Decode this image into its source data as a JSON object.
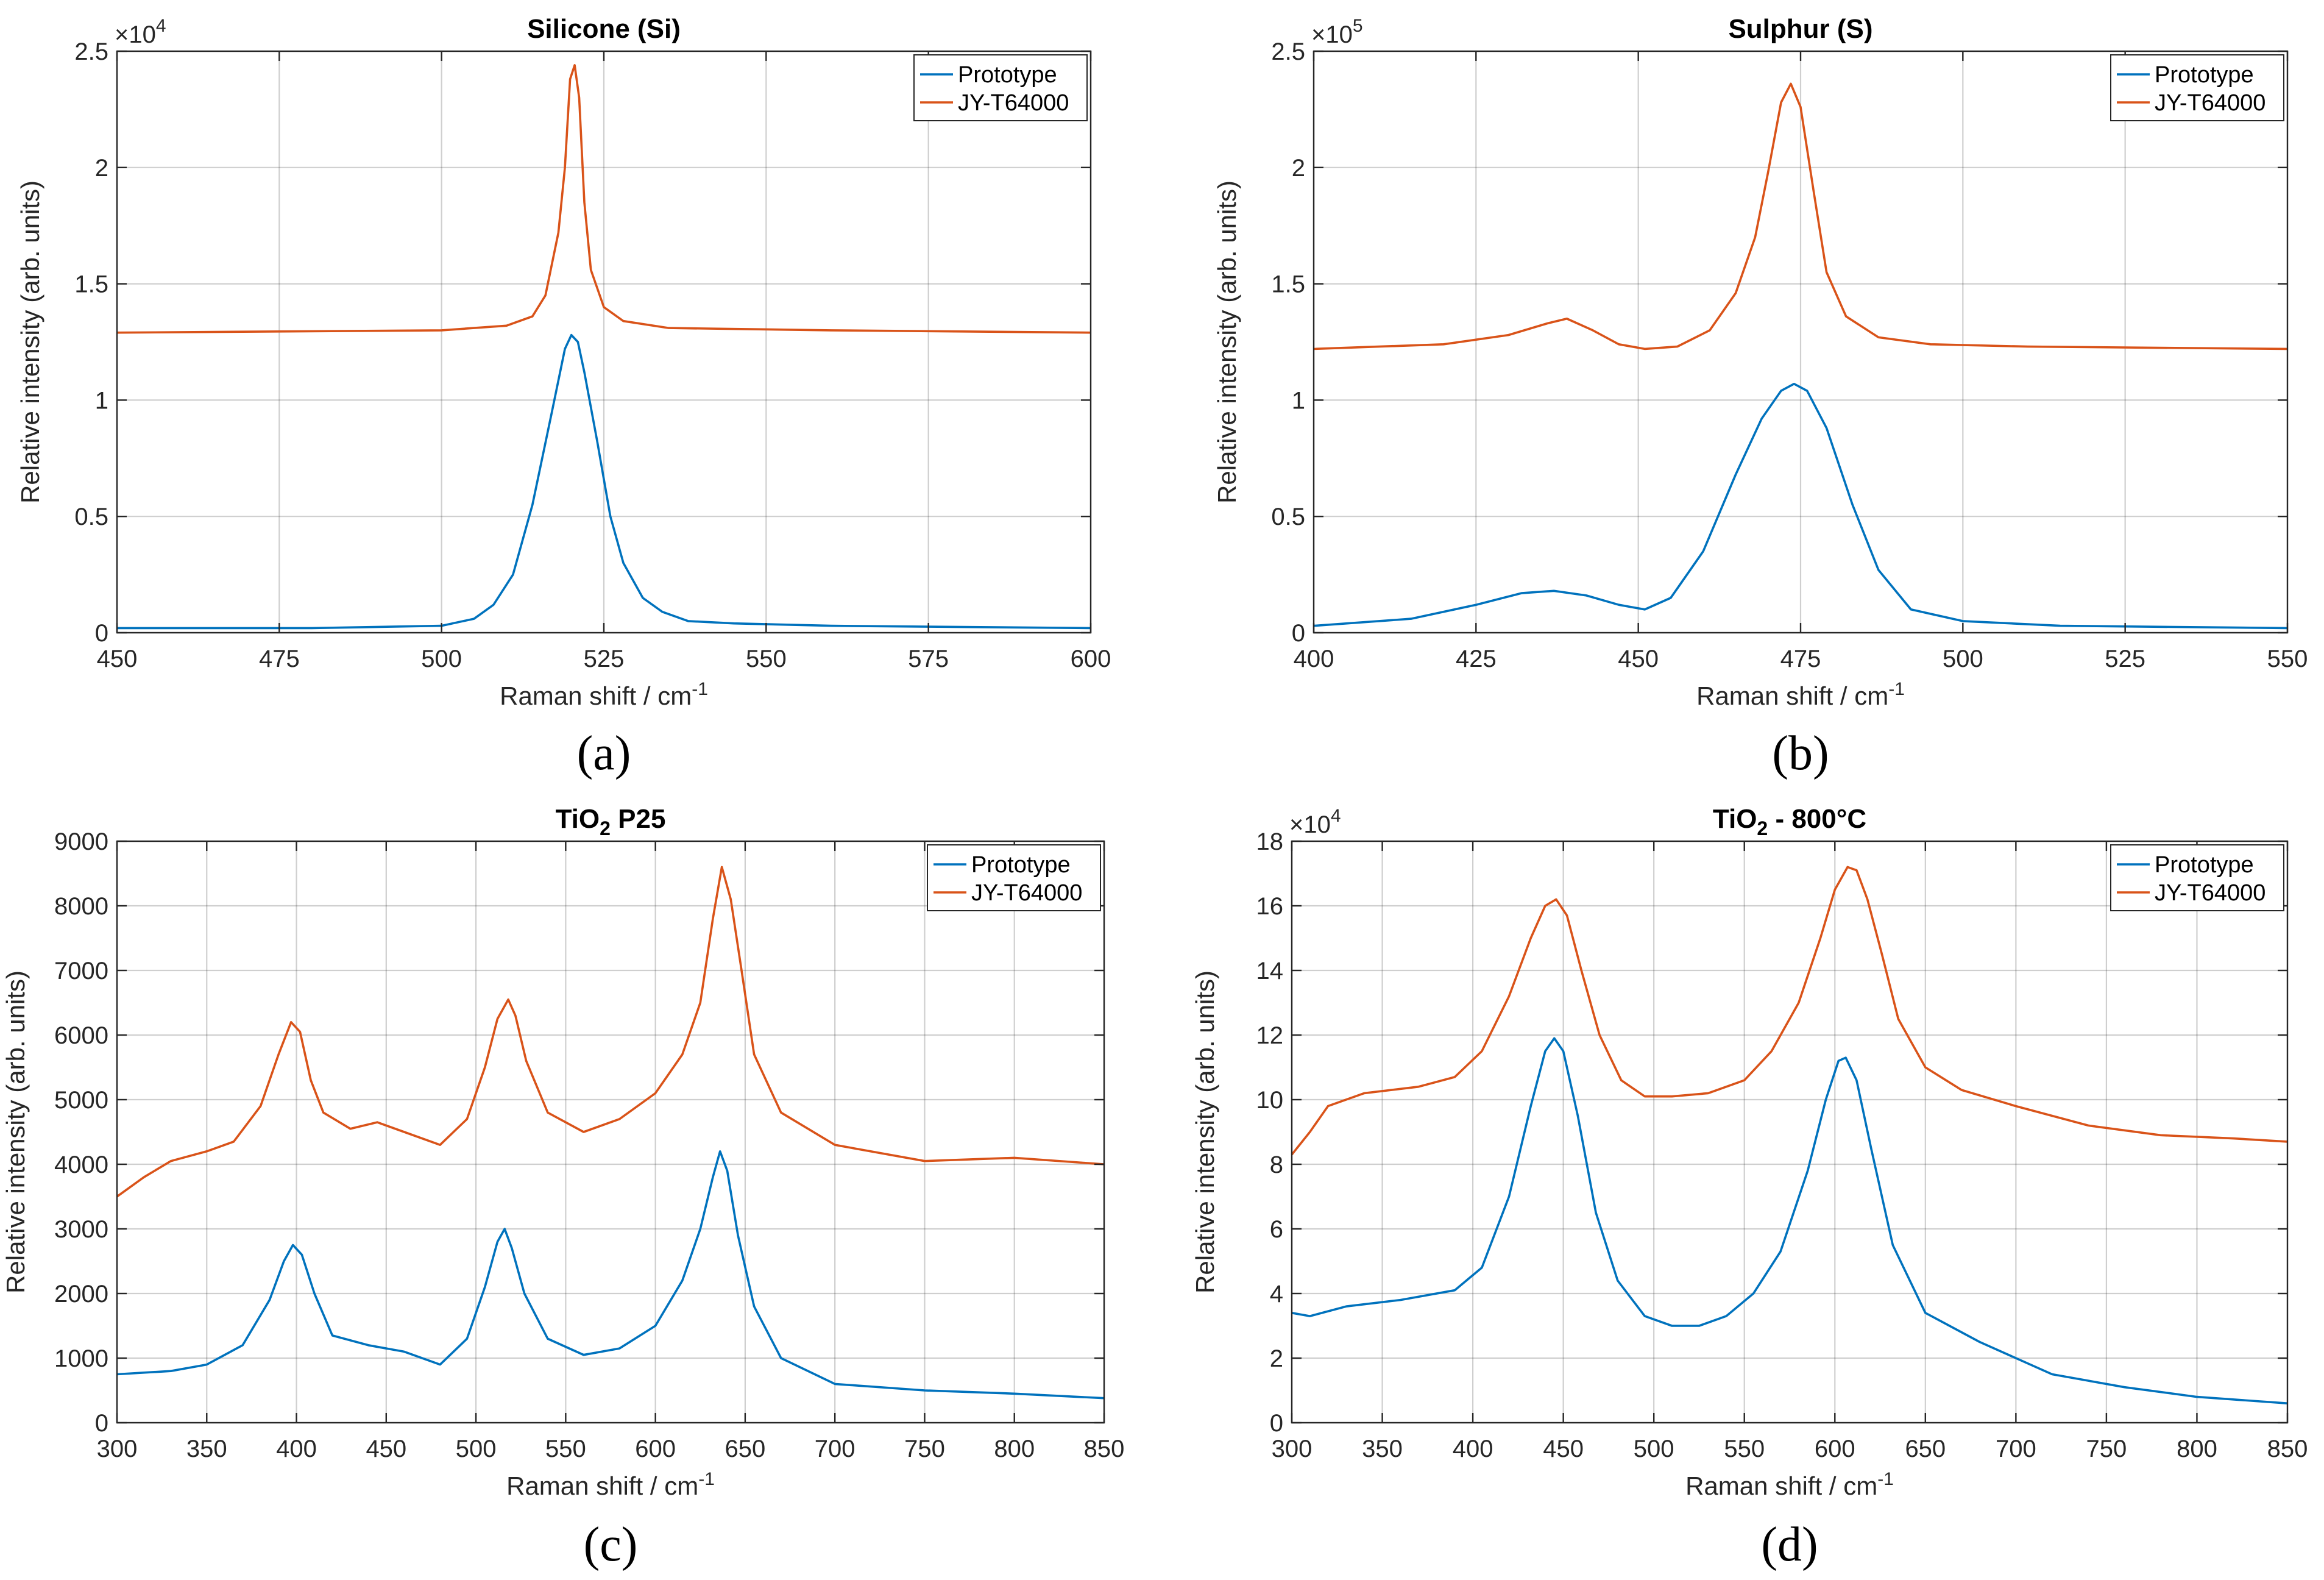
{
  "series_colors": {
    "Prototype": "#0072bd",
    "JY-T64000": "#d95319"
  },
  "chart_data": [
    {
      "type": "line",
      "title": "Silicone (Si)",
      "xlabel": "Raman shift / cm",
      "xlabel_sup": "-1",
      "ylabel": "Relative intensity (arb. units)",
      "caption": "(a)",
      "multiplier": "×10",
      "multiplier_exp": "4",
      "xlim": [
        450,
        600
      ],
      "ylim": [
        0,
        2.5
      ],
      "xticks": [
        450,
        475,
        500,
        525,
        550,
        575,
        600
      ],
      "yticks": [
        0,
        0.5,
        1,
        1.5,
        2,
        2.5
      ],
      "ytick_labels": [
        "0",
        "0.5",
        "1",
        "1.5",
        "2",
        "2.5"
      ],
      "grid": true,
      "legend_position": "top-right",
      "series": [
        {
          "name": "Prototype",
          "x": [
            450,
            480,
            500,
            505,
            508,
            511,
            514,
            517,
            519,
            520,
            521,
            522,
            524,
            526,
            528,
            531,
            534,
            538,
            545,
            560,
            600
          ],
          "y": [
            0.02,
            0.02,
            0.03,
            0.06,
            0.12,
            0.25,
            0.55,
            0.95,
            1.22,
            1.28,
            1.25,
            1.12,
            0.82,
            0.5,
            0.3,
            0.15,
            0.09,
            0.05,
            0.04,
            0.03,
            0.02
          ]
        },
        {
          "name": "JY-T64000",
          "x": [
            450,
            500,
            510,
            514,
            516,
            518,
            519,
            519.8,
            520.5,
            521.2,
            522,
            523,
            525,
            528,
            535,
            560,
            600
          ],
          "y": [
            1.29,
            1.3,
            1.32,
            1.36,
            1.45,
            1.72,
            2.0,
            2.38,
            2.44,
            2.3,
            1.85,
            1.56,
            1.4,
            1.34,
            1.31,
            1.3,
            1.29
          ]
        }
      ]
    },
    {
      "type": "line",
      "title": "Sulphur (S)",
      "xlabel": "Raman shift / cm",
      "xlabel_sup": "-1",
      "ylabel": "Relative intensity (arb. units)",
      "caption": "(b)",
      "multiplier": "×10",
      "multiplier_exp": "5",
      "xlim": [
        400,
        550
      ],
      "ylim": [
        0,
        2.5
      ],
      "xticks": [
        400,
        425,
        450,
        475,
        500,
        525,
        550
      ],
      "yticks": [
        0,
        0.5,
        1,
        1.5,
        2,
        2.5
      ],
      "ytick_labels": [
        "0",
        "0.5",
        "1",
        "1.5",
        "2",
        "2.5"
      ],
      "grid": true,
      "legend_position": "top-right",
      "series": [
        {
          "name": "Prototype",
          "x": [
            400,
            415,
            425,
            432,
            437,
            442,
            447,
            451,
            455,
            460,
            465,
            469,
            472,
            474,
            476,
            479,
            483,
            487,
            492,
            500,
            515,
            550
          ],
          "y": [
            0.03,
            0.06,
            0.12,
            0.17,
            0.18,
            0.16,
            0.12,
            0.1,
            0.15,
            0.35,
            0.68,
            0.92,
            1.04,
            1.07,
            1.04,
            0.88,
            0.55,
            0.27,
            0.1,
            0.05,
            0.03,
            0.02
          ]
        },
        {
          "name": "JY-T64000",
          "x": [
            400,
            420,
            430,
            436,
            439,
            443,
            447,
            451,
            456,
            461,
            465,
            468,
            470,
            472,
            473.5,
            475,
            477,
            479,
            482,
            487,
            495,
            510,
            550
          ],
          "y": [
            1.22,
            1.24,
            1.28,
            1.33,
            1.35,
            1.3,
            1.24,
            1.22,
            1.23,
            1.3,
            1.46,
            1.7,
            1.98,
            2.28,
            2.36,
            2.26,
            1.9,
            1.55,
            1.36,
            1.27,
            1.24,
            1.23,
            1.22
          ]
        }
      ]
    },
    {
      "type": "line",
      "title": "TiO",
      "title_sub": "2",
      "title_rest": " P25",
      "xlabel": "Raman shift / cm",
      "xlabel_sup": "-1",
      "ylabel": "Relative intensity (arb. units)",
      "caption": "(c)",
      "multiplier": "",
      "multiplier_exp": "",
      "xlim": [
        300,
        850
      ],
      "ylim": [
        0,
        9000
      ],
      "xticks": [
        300,
        350,
        400,
        450,
        500,
        550,
        600,
        650,
        700,
        750,
        800,
        850
      ],
      "yticks": [
        0,
        1000,
        2000,
        3000,
        4000,
        5000,
        6000,
        7000,
        8000,
        9000
      ],
      "ytick_labels": [
        "0",
        "1000",
        "2000",
        "3000",
        "4000",
        "5000",
        "6000",
        "7000",
        "8000",
        "9000"
      ],
      "grid": true,
      "legend_position": "top-right",
      "series": [
        {
          "name": "Prototype",
          "x": [
            300,
            330,
            350,
            370,
            385,
            393,
            398,
            403,
            410,
            420,
            440,
            460,
            480,
            495,
            505,
            512,
            516,
            520,
            527,
            540,
            560,
            580,
            600,
            615,
            625,
            632,
            636,
            640,
            646,
            655,
            670,
            700,
            750,
            800,
            850
          ],
          "y": [
            750,
            800,
            900,
            1200,
            1900,
            2500,
            2750,
            2600,
            2000,
            1350,
            1200,
            1100,
            900,
            1300,
            2100,
            2800,
            3000,
            2700,
            2000,
            1300,
            1050,
            1150,
            1500,
            2200,
            3000,
            3800,
            4200,
            3900,
            2900,
            1800,
            1000,
            600,
            500,
            450,
            380
          ]
        },
        {
          "name": "JY-T64000",
          "x": [
            300,
            315,
            330,
            350,
            365,
            380,
            390,
            397,
            402,
            408,
            415,
            430,
            445,
            460,
            480,
            495,
            505,
            512,
            518,
            522,
            528,
            540,
            560,
            580,
            600,
            615,
            625,
            632,
            637,
            642,
            648,
            655,
            670,
            700,
            750,
            800,
            850
          ],
          "y": [
            3500,
            3800,
            4050,
            4200,
            4350,
            4900,
            5700,
            6200,
            6050,
            5300,
            4800,
            4550,
            4650,
            4500,
            4300,
            4700,
            5500,
            6250,
            6550,
            6300,
            5600,
            4800,
            4500,
            4700,
            5100,
            5700,
            6500,
            7800,
            8600,
            8100,
            7000,
            5700,
            4800,
            4300,
            4050,
            4100,
            4000
          ]
        }
      ]
    },
    {
      "type": "line",
      "title": "TiO",
      "title_sub": "2",
      "title_rest": " - 800°C",
      "xlabel": "Raman shift / cm",
      "xlabel_sup": "-1",
      "ylabel": "Relative intensity (arb. units)",
      "caption": "(d)",
      "multiplier": "×10",
      "multiplier_exp": "4",
      "xlim": [
        300,
        850
      ],
      "ylim": [
        0,
        18
      ],
      "xticks": [
        300,
        350,
        400,
        450,
        500,
        550,
        600,
        650,
        700,
        750,
        800,
        850
      ],
      "yticks": [
        0,
        2,
        4,
        6,
        8,
        10,
        12,
        14,
        16,
        18
      ],
      "ytick_labels": [
        "0",
        "2",
        "4",
        "6",
        "8",
        "10",
        "12",
        "14",
        "16",
        "18"
      ],
      "grid": true,
      "legend_position": "top-right",
      "series": [
        {
          "name": "Prototype",
          "x": [
            300,
            310,
            330,
            360,
            390,
            405,
            420,
            432,
            440,
            445,
            450,
            458,
            468,
            480,
            495,
            510,
            525,
            540,
            555,
            570,
            585,
            595,
            602,
            606,
            612,
            620,
            632,
            650,
            680,
            720,
            760,
            800,
            850
          ],
          "y": [
            3.4,
            3.3,
            3.6,
            3.8,
            4.1,
            4.8,
            7.0,
            9.8,
            11.5,
            11.9,
            11.5,
            9.5,
            6.5,
            4.4,
            3.3,
            3.0,
            3.0,
            3.3,
            4.0,
            5.3,
            7.8,
            10.0,
            11.2,
            11.3,
            10.6,
            8.5,
            5.5,
            3.4,
            2.5,
            1.5,
            1.1,
            0.8,
            0.6
          ]
        },
        {
          "name": "JY-T64000",
          "x": [
            300,
            310,
            320,
            340,
            370,
            390,
            405,
            420,
            432,
            440,
            446,
            452,
            460,
            470,
            482,
            495,
            510,
            530,
            550,
            565,
            580,
            592,
            600,
            607,
            612,
            618,
            626,
            635,
            650,
            670,
            700,
            740,
            780,
            820,
            850
          ],
          "y": [
            8.3,
            9.0,
            9.8,
            10.2,
            10.4,
            10.7,
            11.5,
            13.2,
            15.0,
            16.0,
            16.2,
            15.7,
            14.0,
            12.0,
            10.6,
            10.1,
            10.1,
            10.2,
            10.6,
            11.5,
            13.0,
            15.0,
            16.5,
            17.2,
            17.1,
            16.2,
            14.5,
            12.5,
            11.0,
            10.3,
            9.8,
            9.2,
            8.9,
            8.8,
            8.7
          ]
        }
      ]
    }
  ]
}
